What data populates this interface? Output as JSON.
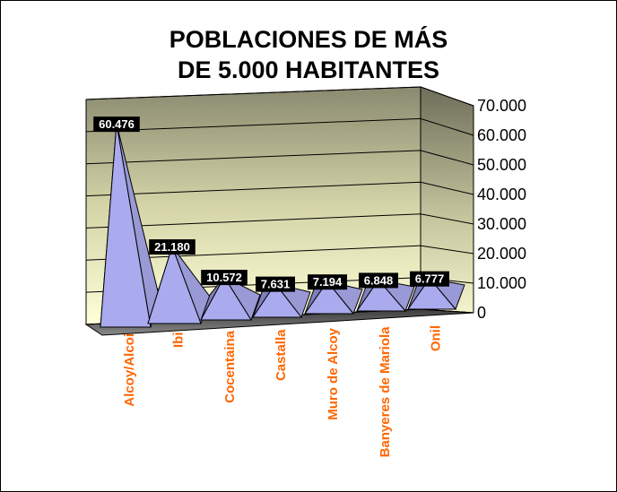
{
  "chart_data": {
    "type": "bar",
    "subtype": "3d-pyramid",
    "title": [
      "POBLACIONES DE MÁS",
      "DE 5.000 HABITANTES"
    ],
    "categories": [
      "Alcoy/Alcoi",
      "Ibi",
      "Cocentaina",
      "Castalla",
      "Muro de Alcoy",
      "Banyeres de Mariola",
      "Onil"
    ],
    "values": [
      60476,
      21180,
      10572,
      7631,
      7194,
      6848,
      6777
    ],
    "value_labels": [
      "60.476",
      "21.180",
      "10.572",
      "7.631",
      "7.194",
      "6.848",
      "6.777"
    ],
    "ylim": [
      0,
      70000
    ],
    "y_ticks": [
      "0",
      "10.000",
      "20.000",
      "30.000",
      "40.000",
      "50.000",
      "60.000",
      "70.000"
    ],
    "grid": true,
    "legend": "none",
    "colors": {
      "pyramid": "#aaaaee",
      "category_label": "#ff6600",
      "data_label_bg": "#000000",
      "data_label_text": "#ffffff",
      "wall": "#c9c9a0",
      "floor": "#5a5a5a"
    }
  }
}
